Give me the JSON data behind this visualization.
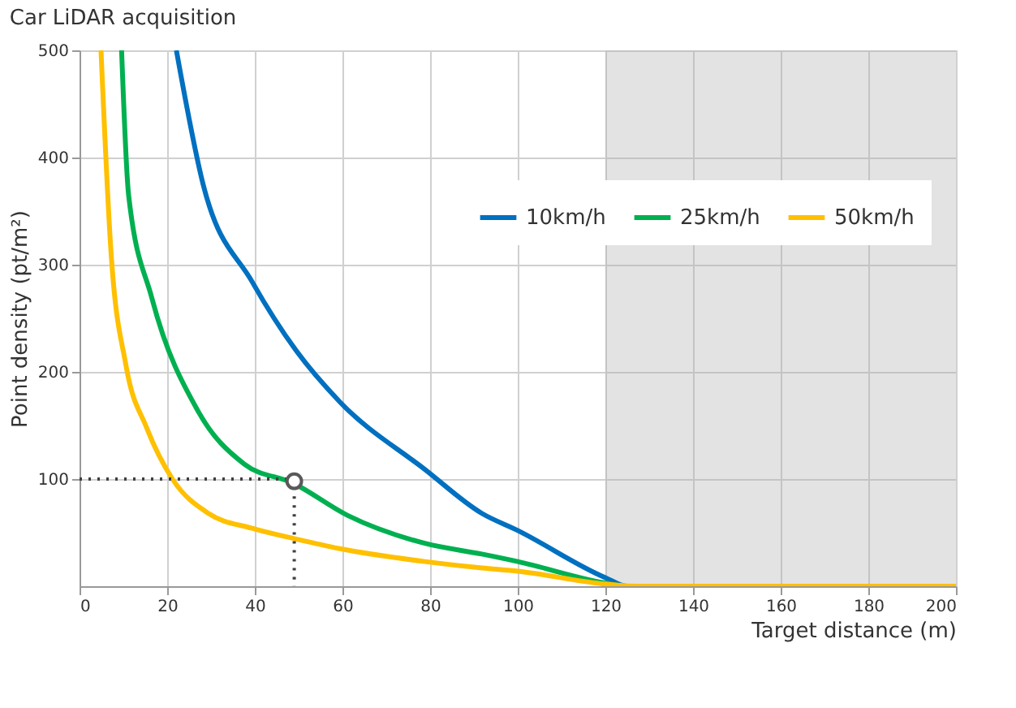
{
  "chart_data": {
    "type": "line",
    "title": "Car LiDAR acquisition",
    "xlabel": "Target distance (m)",
    "ylabel": "Point density (pt/m²)",
    "xlim": [
      0,
      200
    ],
    "ylim": [
      0,
      500
    ],
    "xticks": [
      0,
      20,
      40,
      60,
      80,
      100,
      120,
      140,
      160,
      180,
      200
    ],
    "yticks": [
      100,
      200,
      300,
      400,
      500
    ],
    "grid": true,
    "legend": "top right",
    "line_style": "solid",
    "marker": "none",
    "bands": [
      {
        "axis": "x",
        "from": 120,
        "to": 200,
        "color": "#b0b0b0"
      }
    ],
    "series": [
      {
        "name": "10km/h",
        "color": "#0070c0",
        "x": [
          22.1,
          28.2,
          39.4,
          49.4,
          59.4,
          78.8,
          91.8,
          100,
          120,
          125,
          200
        ],
        "values": [
          500,
          375,
          284,
          220,
          172,
          109,
          68,
          52,
          8,
          0,
          0
        ]
      },
      {
        "name": "25km/h",
        "color": "#00b050",
        "x": [
          9.6,
          11.2,
          16.5,
          27.1,
          37.6,
          48.8,
          61.2,
          78.8,
          91.8,
          100,
          120,
          125,
          200
        ],
        "values": [
          500,
          365,
          269,
          163,
          114,
          96,
          66,
          40,
          30,
          23,
          3,
          0,
          0
        ]
      },
      {
        "name": "50km/h",
        "color": "#ffc000",
        "x": [
          4.9,
          7.1,
          10.6,
          15.3,
          21.2,
          29.4,
          39.4,
          49.4,
          59.4,
          78.8,
          91.8,
          100,
          120,
          127,
          200
        ],
        "values": [
          500,
          317,
          206,
          148,
          100,
          68,
          54,
          44,
          35,
          23,
          17,
          14,
          2,
          0,
          0
        ]
      },
      {
        "type": "line",
        "color": "#404040",
        "line_style": "dotted",
        "x": [
          0,
          49,
          49
        ],
        "values": [
          100,
          100,
          0
        ]
      },
      {
        "type": "scatter",
        "color": "#595959",
        "marker": "circle",
        "x": [
          49
        ],
        "values": [
          98
        ]
      }
    ]
  }
}
